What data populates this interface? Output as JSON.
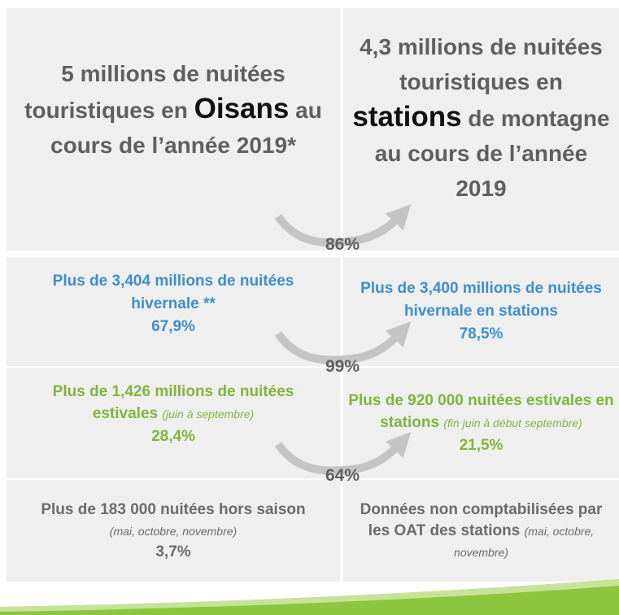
{
  "rows": [
    {
      "left": {
        "text": "5 millions de nuitées touristiques en ",
        "highlight": "Oisans",
        "rest": " au cours de l’année 2019*"
      },
      "right": {
        "text": "4,3 millions de nuitées touristiques en ",
        "highlight": "stations",
        "rest": " de montagne au cours de l’année 2019"
      },
      "arrow": "86%"
    },
    {
      "left": {
        "text": "Plus de 3,404 millions de nuitées hivernale **",
        "share": "67,9%"
      },
      "right": {
        "text": "Plus de 3,400 millions de nuitées hivernale en stations",
        "share": "78,5%"
      },
      "arrow": "99%"
    },
    {
      "left": {
        "text": "Plus de 1,426 millions de nuitées estivales ",
        "note": "(juin à septembre)",
        "share": "28,4%"
      },
      "right": {
        "text": "Plus de 920 000 nuitées estivales en stations ",
        "note": "(fin juin à début septembre)",
        "share": "21,5%"
      },
      "arrow": "64%"
    },
    {
      "left": {
        "text": "Plus de 183 000 nuitées hors saison ",
        "note": "(mai, octobre, novembre)",
        "share": "3,7%"
      },
      "right": {
        "text": "Données non comptabilisées par les OAT des stations ",
        "note": "(mai, octobre, novembre)"
      }
    }
  ]
}
